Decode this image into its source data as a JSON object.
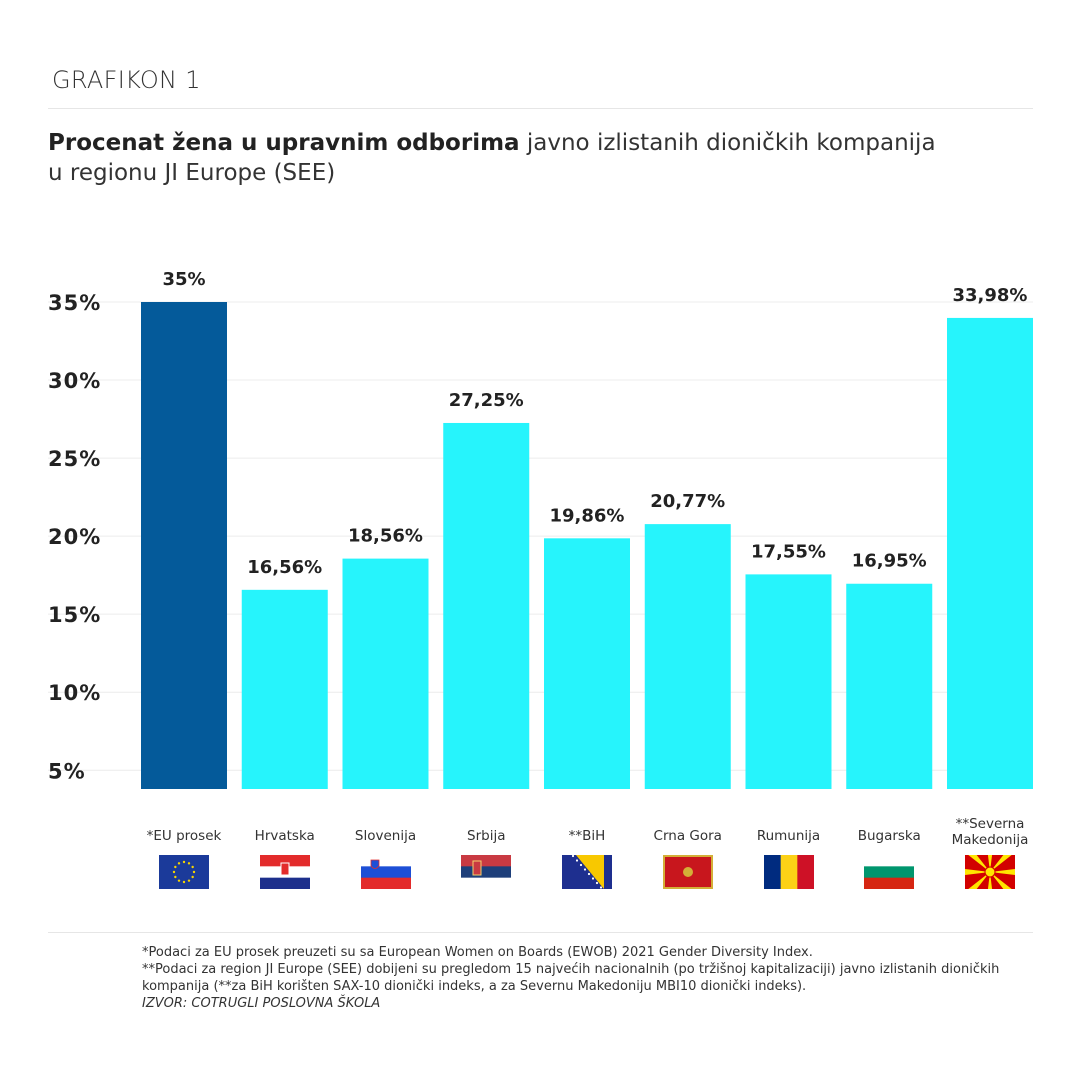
{
  "kicker": "GRAFIKON 1",
  "title_bold": "Procenat žena u upravnim odborima",
  "title_rest": " javno izlistanih dioničkih kompanija u regionu JI Europe (SEE)",
  "colors": {
    "eu": "#045a9a",
    "region": "#26f4fc",
    "grid": "#ececec"
  },
  "chart_data": {
    "type": "bar",
    "categories": [
      "*EU prosek",
      "Hrvatska",
      "Slovenija",
      "Srbija",
      "**BiH",
      "Crna Gora",
      "Rumunija",
      "Bugarska",
      "**Severna Makedonija"
    ],
    "values": [
      35,
      16.56,
      18.56,
      27.25,
      19.86,
      20.77,
      17.55,
      16.95,
      33.98
    ],
    "data_labels": [
      "35%",
      "16,56%",
      "18,56%",
      "27,25%",
      "19,86%",
      "20,77%",
      "17,55%",
      "16,95%",
      "33,98%"
    ],
    "yticks": [
      5,
      10,
      15,
      20,
      25,
      30,
      35
    ],
    "ytick_labels": [
      "5%",
      "10%",
      "15%",
      "20%",
      "25%",
      "30%",
      "35%"
    ],
    "ylim": [
      3.8,
      35
    ],
    "grid": true,
    "xlabel": "",
    "ylabel": ""
  },
  "flags": [
    "eu-flag-icon",
    "croatia-flag-icon",
    "slovenia-flag-icon",
    "serbia-flag-icon",
    "bih-flag-icon",
    "montenegro-flag-icon",
    "romania-flag-icon",
    "bulgaria-flag-icon",
    "north-macedonia-flag-icon"
  ],
  "notes": {
    "line1": "*Podaci za EU prosek preuzeti su sa European Women on Boards (EWOB) 2021 Gender Diversity Index.",
    "line2": "**Podaci za region JI Europe (SEE) dobijeni su pregledom 15 najvećih nacionalnih (po tržišnoj kapitalizaciji) javno izlistanih dioničkih kompanija (**za BiH korišten SAX-10 dionički indeks, a za Severnu Makedoniju MBI10 dionički indeks).",
    "source": "IZVOR: COTRUGLI POSLOVNA ŠKOLA"
  }
}
